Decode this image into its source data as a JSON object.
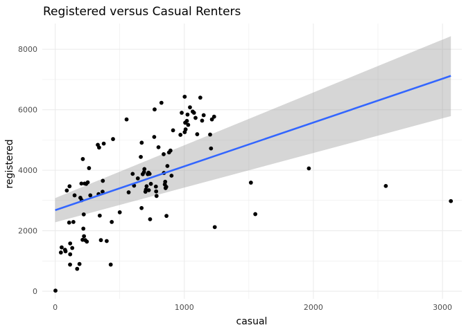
{
  "chart_data": {
    "type": "scatter",
    "title": "Registered versus Casual Renters",
    "xlabel": "casual",
    "ylabel": "registered",
    "xlim": [
      -100,
      3150
    ],
    "ylim": [
      -250,
      8850
    ],
    "x_ticks": [
      0,
      1000,
      2000,
      3000
    ],
    "y_ticks": [
      0,
      2000,
      4000,
      6000,
      8000
    ],
    "grid": true,
    "colors": {
      "points": "#000000",
      "fit_line": "#3366FF",
      "ribbon": "#999999",
      "grid": "#EBEBEB"
    },
    "smooth": {
      "method": "linear",
      "x": [
        0,
        3065
      ],
      "y": [
        2680,
        7120
      ],
      "ci_lower": [
        2280,
        5790
      ],
      "ci_upper": [
        3080,
        8430
      ]
    },
    "points": [
      [
        2,
        20
      ],
      [
        44,
        1280
      ],
      [
        50,
        1450
      ],
      [
        76,
        1370
      ],
      [
        80,
        1320
      ],
      [
        90,
        3330
      ],
      [
        108,
        2270
      ],
      [
        111,
        3470
      ],
      [
        115,
        880
      ],
      [
        116,
        1580
      ],
      [
        116,
        1220
      ],
      [
        132,
        1430
      ],
      [
        141,
        2290
      ],
      [
        150,
        3170
      ],
      [
        170,
        740
      ],
      [
        188,
        900
      ],
      [
        195,
        3090
      ],
      [
        203,
        3560
      ],
      [
        205,
        3010
      ],
      [
        212,
        1700
      ],
      [
        214,
        4370
      ],
      [
        218,
        2070
      ],
      [
        221,
        2540
      ],
      [
        223,
        1820
      ],
      [
        228,
        3560
      ],
      [
        233,
        1690
      ],
      [
        240,
        3550
      ],
      [
        245,
        1640
      ],
      [
        252,
        3600
      ],
      [
        262,
        4070
      ],
      [
        272,
        3170
      ],
      [
        330,
        4840
      ],
      [
        336,
        3210
      ],
      [
        340,
        4750
      ],
      [
        345,
        2500
      ],
      [
        354,
        1690
      ],
      [
        369,
        3650
      ],
      [
        376,
        4880
      ],
      [
        367,
        3290
      ],
      [
        399,
        1660
      ],
      [
        430,
        880
      ],
      [
        438,
        2290
      ],
      [
        448,
        5030
      ],
      [
        500,
        2610
      ],
      [
        553,
        5680
      ],
      [
        569,
        3270
      ],
      [
        600,
        3880
      ],
      [
        611,
        3490
      ],
      [
        640,
        3730
      ],
      [
        663,
        4440
      ],
      [
        669,
        2750
      ],
      [
        670,
        4910
      ],
      [
        678,
        3870
      ],
      [
        688,
        3940
      ],
      [
        691,
        4040
      ],
      [
        699,
        3290
      ],
      [
        703,
        3360
      ],
      [
        708,
        3470
      ],
      [
        717,
        3870
      ],
      [
        723,
        3920
      ],
      [
        725,
        3340
      ],
      [
        731,
        3880
      ],
      [
        735,
        2380
      ],
      [
        741,
        3550
      ],
      [
        767,
        5100
      ],
      [
        770,
        6010
      ],
      [
        780,
        3460
      ],
      [
        782,
        3300
      ],
      [
        785,
        3150
      ],
      [
        800,
        4760
      ],
      [
        823,
        6230
      ],
      [
        840,
        4530
      ],
      [
        842,
        3910
      ],
      [
        849,
        3530
      ],
      [
        852,
        3620
      ],
      [
        855,
        3410
      ],
      [
        860,
        3450
      ],
      [
        862,
        2490
      ],
      [
        869,
        4140
      ],
      [
        882,
        4590
      ],
      [
        893,
        4650
      ],
      [
        901,
        3820
      ],
      [
        913,
        5320
      ],
      [
        970,
        5170
      ],
      [
        980,
        5900
      ],
      [
        1003,
        6430
      ],
      [
        1003,
        5260
      ],
      [
        1007,
        5570
      ],
      [
        1010,
        5350
      ],
      [
        1020,
        5630
      ],
      [
        1025,
        5840
      ],
      [
        1030,
        5500
      ],
      [
        1044,
        6080
      ],
      [
        1065,
        5940
      ],
      [
        1075,
        5900
      ],
      [
        1087,
        5730
      ],
      [
        1100,
        5190
      ],
      [
        1124,
        6400
      ],
      [
        1138,
        5640
      ],
      [
        1150,
        5820
      ],
      [
        1200,
        5180
      ],
      [
        1207,
        4720
      ],
      [
        1214,
        5680
      ],
      [
        1231,
        5770
      ],
      [
        1236,
        2120
      ],
      [
        1516,
        3590
      ],
      [
        1550,
        2550
      ],
      [
        1965,
        4060
      ],
      [
        2561,
        3480
      ],
      [
        3065,
        2980
      ]
    ]
  }
}
